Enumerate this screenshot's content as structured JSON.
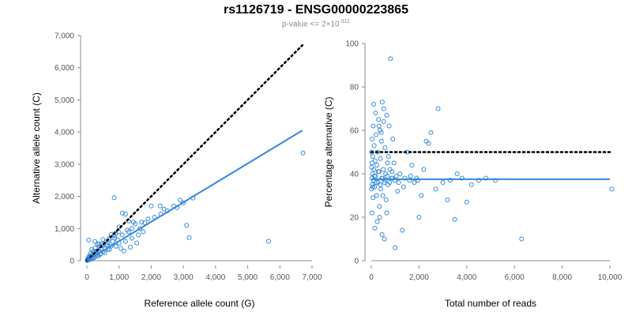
{
  "title": "rs1126719 - ENSG00000223865",
  "subtitle": {
    "prefix": "p-value <= 2×10",
    "exponent": "-311"
  },
  "chart_data": [
    {
      "type": "scatter",
      "xlabel": "Reference allele count (G)",
      "ylabel": "Alternative allele count (C)",
      "xlim": [
        0,
        7000
      ],
      "ylim": [
        0,
        7000
      ],
      "xticks": [
        0,
        1000,
        2000,
        3000,
        4000,
        5000,
        6000,
        7000
      ],
      "yticks": [
        0,
        1000,
        2000,
        3000,
        4000,
        5000,
        6000,
        7000
      ],
      "xtick_labels": [
        "0",
        "1,000",
        "2,000",
        "3,000",
        "4,000",
        "5,000",
        "6,000",
        "7,000"
      ],
      "ytick_labels": [
        "0",
        "1,000",
        "2,000",
        "3,000",
        "4,000",
        "5,000",
        "6,000",
        "7,000"
      ],
      "grid": false,
      "point_color": "#3388dd",
      "reference_line": {
        "style": "dotted",
        "color": "#000000",
        "x": [
          0,
          6700
        ],
        "y": [
          0,
          6700
        ]
      },
      "fit_line": {
        "color": "#3388dd",
        "x": [
          0,
          6700
        ],
        "y": [
          0,
          4050
        ]
      },
      "points": [
        [
          6720,
          3350
        ],
        [
          5650,
          610
        ],
        [
          3180,
          720
        ],
        [
          3100,
          1100
        ],
        [
          2900,
          1880
        ],
        [
          2700,
          1700
        ],
        [
          2400,
          1600
        ],
        [
          2280,
          1700
        ],
        [
          2000,
          1700
        ],
        [
          1800,
          1180
        ],
        [
          1650,
          1000
        ],
        [
          1550,
          550
        ],
        [
          1300,
          1230
        ],
        [
          1200,
          1450
        ],
        [
          1100,
          1480
        ],
        [
          850,
          1960
        ],
        [
          1350,
          420
        ],
        [
          1150,
          300
        ],
        [
          1050,
          380
        ],
        [
          950,
          650
        ],
        [
          900,
          850
        ],
        [
          800,
          600
        ],
        [
          750,
          450
        ],
        [
          700,
          700
        ],
        [
          650,
          350
        ],
        [
          600,
          600
        ],
        [
          550,
          400
        ],
        [
          500,
          280
        ],
        [
          480,
          520
        ],
        [
          450,
          350
        ],
        [
          420,
          200
        ],
        [
          400,
          450
        ],
        [
          380,
          300
        ],
        [
          350,
          150
        ],
        [
          330,
          520
        ],
        [
          300,
          300
        ],
        [
          280,
          180
        ],
        [
          260,
          400
        ],
        [
          240,
          250
        ],
        [
          220,
          120
        ],
        [
          200,
          300
        ],
        [
          180,
          200
        ],
        [
          160,
          90
        ],
        [
          150,
          350
        ],
        [
          140,
          160
        ],
        [
          120,
          60
        ],
        [
          110,
          220
        ],
        [
          100,
          120
        ],
        [
          90,
          40
        ],
        [
          80,
          150
        ],
        [
          70,
          80
        ],
        [
          60,
          30
        ],
        [
          50,
          100
        ],
        [
          40,
          50
        ],
        [
          30,
          20
        ],
        [
          20,
          10
        ],
        [
          15,
          40
        ],
        [
          10,
          5
        ],
        [
          60,
          640
        ],
        [
          250,
          600
        ],
        [
          380,
          520
        ],
        [
          500,
          660
        ],
        [
          620,
          500
        ],
        [
          760,
          820
        ],
        [
          870,
          700
        ],
        [
          980,
          900
        ],
        [
          1100,
          800
        ],
        [
          1250,
          950
        ],
        [
          1400,
          1000
        ],
        [
          1500,
          1150
        ],
        [
          1700,
          1200
        ],
        [
          1900,
          1300
        ],
        [
          2100,
          1350
        ],
        [
          2300,
          1450
        ],
        [
          2500,
          1550
        ],
        [
          2800,
          1650
        ],
        [
          3000,
          1800
        ],
        [
          3300,
          1950
        ],
        [
          1600,
          800
        ],
        [
          1750,
          900
        ],
        [
          1400,
          700
        ],
        [
          1200,
          600
        ],
        [
          1000,
          550
        ],
        [
          900,
          450
        ],
        [
          700,
          350
        ],
        [
          550,
          250
        ],
        [
          430,
          220
        ],
        [
          320,
          160
        ],
        [
          230,
          100
        ],
        [
          170,
          70
        ],
        [
          1450,
          1200
        ],
        [
          1300,
          900
        ],
        [
          1000,
          1050
        ],
        [
          850,
          780
        ],
        [
          650,
          560
        ],
        [
          520,
          470
        ]
      ]
    },
    {
      "type": "scatter",
      "xlabel": "Total number of reads",
      "ylabel": "Percentage alternative (C)",
      "xlim": [
        0,
        10000
      ],
      "ylim": [
        0,
        100
      ],
      "xticks": [
        0,
        2000,
        4000,
        6000,
        8000,
        10000
      ],
      "yticks": [
        0,
        20,
        40,
        60,
        80,
        100
      ],
      "xtick_labels": [
        "0",
        "2,000",
        "4,000",
        "6,000",
        "8,000",
        "10,000"
      ],
      "ytick_labels": [
        "0",
        "20",
        "40",
        "60",
        "80",
        "100"
      ],
      "grid": false,
      "point_color": "#3388dd",
      "reference_line": {
        "style": "dotted",
        "color": "#000000",
        "x": [
          0,
          10000
        ],
        "y": [
          50,
          50
        ]
      },
      "fit_line": {
        "color": "#3388dd",
        "x": [
          0,
          10000
        ],
        "y": [
          37.5,
          37.5
        ]
      },
      "points": [
        [
          10080,
          33
        ],
        [
          6300,
          10
        ],
        [
          5200,
          37
        ],
        [
          4800,
          38
        ],
        [
          4500,
          37
        ],
        [
          4200,
          35
        ],
        [
          4000,
          27
        ],
        [
          3800,
          38
        ],
        [
          3600,
          40
        ],
        [
          3500,
          19
        ],
        [
          3200,
          28
        ],
        [
          3000,
          36
        ],
        [
          2800,
          70
        ],
        [
          2500,
          59
        ],
        [
          2400,
          54
        ],
        [
          2300,
          55
        ],
        [
          2200,
          42
        ],
        [
          2100,
          30
        ],
        [
          2000,
          20
        ],
        [
          1900,
          38
        ],
        [
          1800,
          36
        ],
        [
          1700,
          44
        ],
        [
          1600,
          37
        ],
        [
          1500,
          50
        ],
        [
          1400,
          38
        ],
        [
          1300,
          14
        ],
        [
          1200,
          40
        ],
        [
          1100,
          32
        ],
        [
          1000,
          6
        ],
        [
          950,
          45
        ],
        [
          900,
          56
        ],
        [
          850,
          38
        ],
        [
          800,
          93
        ],
        [
          780,
          42
        ],
        [
          750,
          62
        ],
        [
          700,
          35
        ],
        [
          680,
          45
        ],
        [
          650,
          67
        ],
        [
          620,
          28
        ],
        [
          600,
          40
        ],
        [
          580,
          52
        ],
        [
          550,
          36
        ],
        [
          520,
          70
        ],
        [
          500,
          42
        ],
        [
          480,
          30
        ],
        [
          460,
          73
        ],
        [
          440,
          38
        ],
        [
          420,
          55
        ],
        [
          400,
          33
        ],
        [
          380,
          47
        ],
        [
          360,
          60
        ],
        [
          340,
          25
        ],
        [
          320,
          41
        ],
        [
          300,
          65
        ],
        [
          280,
          36
        ],
        [
          260,
          50
        ],
        [
          240,
          44
        ],
        [
          220,
          30
        ],
        [
          200,
          58
        ],
        [
          180,
          39
        ],
        [
          160,
          46
        ],
        [
          140,
          34
        ],
        [
          120,
          53
        ],
        [
          110,
          42
        ],
        [
          100,
          72
        ],
        [
          90,
          37
        ],
        [
          80,
          62
        ],
        [
          70,
          29
        ],
        [
          60,
          48
        ],
        [
          50,
          40
        ],
        [
          40,
          56
        ],
        [
          35,
          35
        ],
        [
          30,
          45
        ],
        [
          25,
          22
        ],
        [
          20,
          38
        ],
        [
          15,
          43
        ],
        [
          10,
          50
        ],
        [
          5,
          33
        ],
        [
          150,
          15
        ],
        [
          250,
          18
        ],
        [
          350,
          20
        ],
        [
          450,
          12
        ],
        [
          550,
          10
        ],
        [
          650,
          22
        ],
        [
          180,
          68
        ],
        [
          320,
          62
        ],
        [
          420,
          59
        ],
        [
          520,
          64
        ],
        [
          720,
          48
        ],
        [
          870,
          41
        ],
        [
          1150,
          36
        ],
        [
          1350,
          34
        ],
        [
          1650,
          39
        ],
        [
          1950,
          37
        ],
        [
          2700,
          33
        ],
        [
          3300,
          37
        ],
        [
          60,
          34
        ],
        [
          130,
          39
        ],
        [
          210,
          36
        ],
        [
          290,
          41
        ],
        [
          370,
          35
        ],
        [
          470,
          38
        ],
        [
          570,
          37
        ],
        [
          670,
          39
        ],
        [
          770,
          36
        ],
        [
          880,
          38
        ],
        [
          990,
          37
        ],
        [
          1050,
          39
        ]
      ]
    }
  ]
}
